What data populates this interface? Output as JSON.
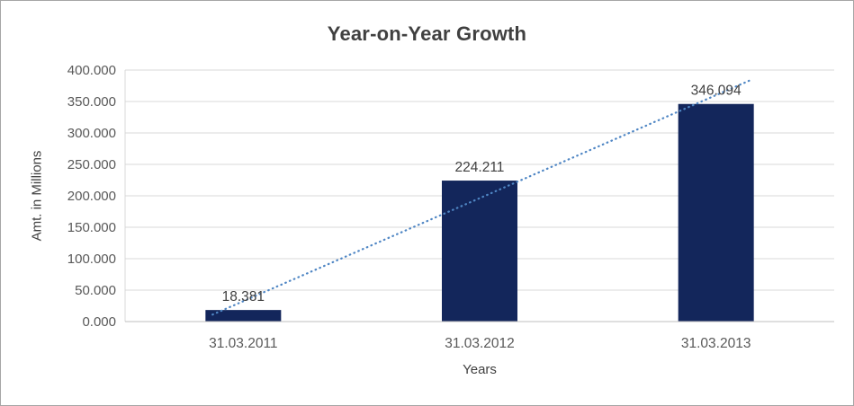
{
  "chart_data": {
    "type": "bar",
    "title": "Year-on-Year Growth",
    "xlabel": "Years",
    "ylabel": "Amt. in Millions",
    "categories": [
      "31.03.2011",
      "31.03.2012",
      "31.03.2013"
    ],
    "series": [
      {
        "name": "Year-on-Year Growth",
        "values": [
          18.381,
          224.211,
          346.094
        ]
      }
    ],
    "data_labels": [
      "18.381",
      "224.211",
      "346.094"
    ],
    "yticks": {
      "values": [
        0,
        50,
        100,
        150,
        200,
        250,
        300,
        350,
        400
      ],
      "labels": [
        "0.000",
        "50.000",
        "100.000",
        "150.000",
        "200.000",
        "250.000",
        "300.000",
        "350.000",
        "400.000"
      ]
    },
    "ylim": [
      0,
      400
    ],
    "grid": true,
    "legend": "none",
    "trendline": {
      "type": "linear",
      "style": "dotted"
    },
    "colors": {
      "bar": "#13265b",
      "trendline": "#4f86c4",
      "grid": "#d9d9d9",
      "axis": "#bfbfbf",
      "tick_text": "#595959",
      "label_text": "#404040",
      "title_text": "#404040"
    }
  }
}
